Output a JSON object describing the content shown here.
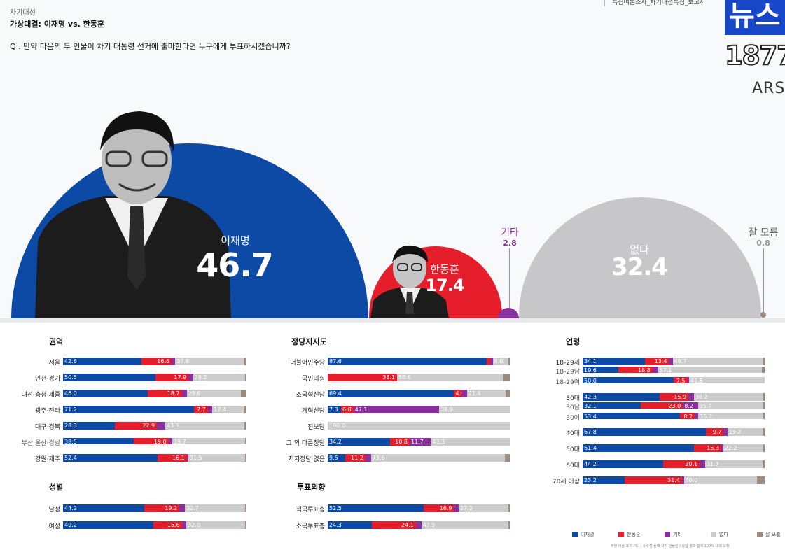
{
  "header": {
    "category": "차기대선",
    "title": "가상대결: 이재명 vs. 한동훈",
    "question": "Q . 만약 다음의 두 인물이 차기 대통령 선거에 출마한다면 누구에게 투표하시겠습니까?",
    "report_label": "특집여론조사_차기대선특집_보고서"
  },
  "brand": {
    "mark": "뉴스",
    "number": "1877",
    "sub": "ARS"
  },
  "colors": {
    "lee": "#0d4aa6",
    "han": "#e61e2b",
    "other": "#8a2f9e",
    "none": "#cccccc",
    "dk": "#9a8a80"
  },
  "chart_data": [
    {
      "type": "pie",
      "title": "",
      "categories": [
        "이재명",
        "한동훈",
        "기타",
        "없다",
        "잘 모름"
      ],
      "values": [
        46.7,
        17.4,
        2.8,
        32.4,
        0.8
      ]
    },
    {
      "type": "bar",
      "stacked": true,
      "title": "권역",
      "categories": [
        "서울",
        "인천·경기",
        "대전·충청·세종",
        "광주·전라",
        "대구·경북",
        "부산·울산·경남",
        "강원·제주"
      ],
      "series": [
        {
          "name": "이재명",
          "values": [
            42.6,
            50.5,
            46.0,
            71.2,
            28.3,
            38.5,
            52.4
          ]
        },
        {
          "name": "한동훈",
          "values": [
            16.6,
            17.9,
            18.7,
            7.7,
            22.9,
            19.0,
            16.1
          ]
        },
        {
          "name": "기타",
          "values": [
            2.0,
            2.5,
            2.8,
            2.5,
            4.5,
            2.0,
            0.5
          ]
        },
        {
          "name": "없다",
          "values": [
            37.6,
            28.2,
            29.6,
            17.4,
            43.3,
            39.7,
            31.5
          ]
        },
        {
          "name": "잘 모름",
          "values": [
            1.2,
            0.9,
            2.9,
            1.2,
            1.0,
            0.8,
            0.5
          ]
        }
      ]
    },
    {
      "type": "bar",
      "stacked": true,
      "title": "성별",
      "categories": [
        "남성",
        "여성"
      ],
      "series": [
        {
          "name": "이재명",
          "values": [
            44.2,
            49.2
          ]
        },
        {
          "name": "한동훈",
          "values": [
            19.2,
            15.6
          ]
        },
        {
          "name": "기타",
          "values": [
            3.0,
            2.5
          ]
        },
        {
          "name": "없다",
          "values": [
            32.7,
            32.0
          ]
        },
        {
          "name": "잘 모름",
          "values": [
            0.9,
            0.7
          ]
        }
      ]
    },
    {
      "type": "bar",
      "stacked": true,
      "title": "정당지지도",
      "categories": [
        "더불어민주당",
        "국민의힘",
        "조국혁신당",
        "개혁신당",
        "진보당",
        "그 외 다른정당",
        "지지정당 없음"
      ],
      "series": [
        {
          "name": "이재명",
          "values": [
            87.6,
            0,
            69.4,
            7.3,
            0,
            34.2,
            9.5
          ]
        },
        {
          "name": "한동훈",
          "values": [
            1.5,
            38.1,
            4.0,
            6.8,
            0,
            10.8,
            11.2
          ]
        },
        {
          "name": "기타",
          "values": [
            1.5,
            0,
            3.0,
            47.1,
            0,
            11.7,
            3.0
          ]
        },
        {
          "name": "없다",
          "values": [
            8.6,
            58.6,
            21.4,
            38.9,
            100.0,
            43.3,
            73.6
          ]
        },
        {
          "name": "잘 모름",
          "values": [
            0.8,
            3.3,
            2.2,
            0,
            0,
            0,
            2.7
          ]
        }
      ]
    },
    {
      "type": "bar",
      "stacked": true,
      "title": "투표의향",
      "categories": [
        "적극투표층",
        "소극투표층"
      ],
      "series": [
        {
          "name": "이재명",
          "values": [
            52.5,
            24.3
          ]
        },
        {
          "name": "한동훈",
          "values": [
            16.9,
            24.1
          ]
        },
        {
          "name": "기타",
          "values": [
            2.5,
            3.0
          ]
        },
        {
          "name": "없다",
          "values": [
            27.3,
            47.9
          ]
        },
        {
          "name": "잘 모름",
          "values": [
            0.8,
            0.7
          ]
        }
      ]
    },
    {
      "type": "bar",
      "stacked": true,
      "title": "연령",
      "categories": [
        "18-29세",
        "18-29남",
        "18-29여",
        "30대",
        "30남",
        "30여",
        "40대",
        "50대",
        "60대",
        "70세 이상"
      ],
      "series": [
        {
          "name": "이재명",
          "values": [
            34.1,
            19.6,
            50.0,
            42.3,
            32.1,
            53.4,
            67.8,
            61.4,
            44.2,
            23.2
          ]
        },
        {
          "name": "한동훈",
          "values": [
            13.4,
            18.8,
            7.5,
            15.9,
            23.0,
            8.2,
            9.7,
            15.3,
            20.1,
            31.4
          ]
        },
        {
          "name": "기타",
          "values": [
            2.0,
            3.0,
            1.0,
            3.0,
            8.2,
            2.0,
            2.0,
            1.0,
            3.0,
            1.0
          ]
        },
        {
          "name": "없다",
          "values": [
            49.7,
            57.1,
            41.5,
            38.2,
            35.7,
            35.7,
            19.2,
            22.2,
            31.7,
            40.0
          ]
        },
        {
          "name": "잘 모름",
          "values": [
            0.8,
            1.5,
            0,
            0.6,
            1.0,
            0.7,
            1.3,
            0.1,
            1.0,
            4.4
          ]
        }
      ]
    }
  ],
  "panel_labels": {
    "권역": [
      "42.6",
      "16.6",
      "37.6",
      "50.5",
      "17.9",
      "28.2",
      "46.0",
      "18.7",
      "29.6",
      "71.2",
      "7.7",
      "17.4",
      "28.3",
      "22.9",
      "43.3",
      "38.5",
      "19.0",
      "39.7",
      "52.4",
      "16.1",
      "31.5"
    ]
  },
  "legend": [
    "이재명",
    "한동훈",
    "기타",
    "없다",
    "잘 모름"
  ],
  "footnote": "해당 비율 표기 (%) / 소수점 둘째 자리 반올림 / 응답 결과 합계 100% 내외 오차"
}
